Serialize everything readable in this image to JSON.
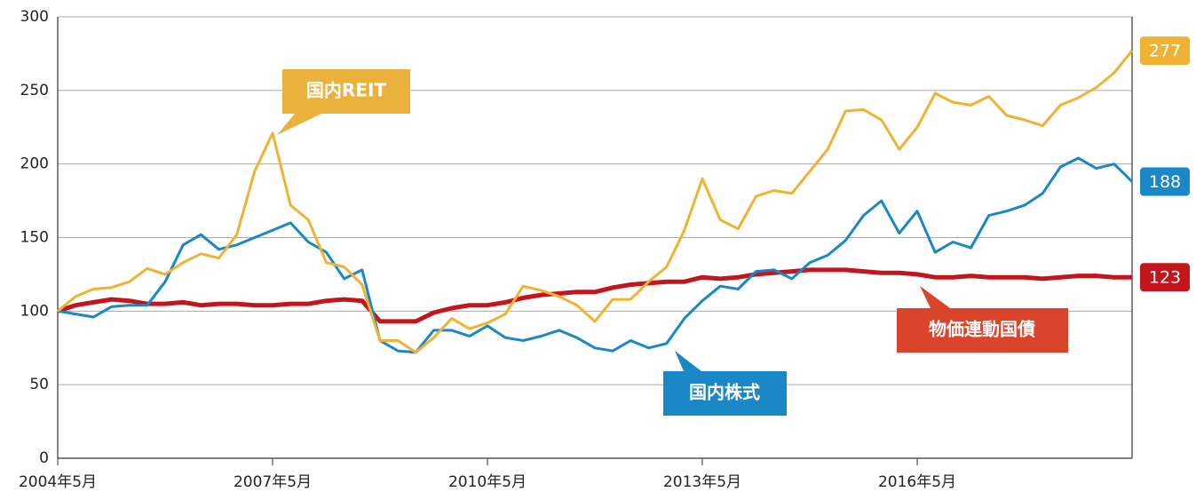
{
  "chart_data": {
    "type": "line",
    "categories": [
      "2004年5月",
      null,
      null,
      null,
      null,
      null,
      null,
      null,
      null,
      null,
      null,
      null,
      "2007年5月",
      null,
      null,
      null,
      null,
      null,
      null,
      null,
      null,
      null,
      null,
      null,
      "2010年5月",
      null,
      null,
      null,
      null,
      null,
      null,
      null,
      null,
      null,
      null,
      null,
      "2013年5月",
      null,
      null,
      null,
      null,
      null,
      null,
      null,
      null,
      null,
      null,
      null,
      "2016年5月",
      null,
      null,
      null,
      null,
      null,
      null,
      null,
      null,
      null,
      null,
      null,
      null
    ],
    "series": [
      {
        "name": "国内REIT",
        "color": "#f0b232",
        "values": [
          100,
          110,
          115,
          116,
          120,
          129,
          125,
          133,
          139,
          136,
          152,
          195,
          221,
          172,
          162,
          133,
          130,
          118,
          80,
          80,
          72,
          82,
          95,
          88,
          92,
          98,
          117,
          114,
          110,
          104,
          93,
          108,
          108,
          120,
          130,
          155,
          190,
          162,
          156,
          178,
          182,
          180,
          195,
          210,
          236,
          237,
          230,
          210,
          225,
          248,
          242,
          240,
          246,
          233,
          230,
          226,
          240,
          245,
          252,
          262,
          277
        ]
      },
      {
        "name": "国内株式",
        "color": "#1a87c6",
        "values": [
          100,
          98,
          96,
          103,
          104,
          104,
          120,
          145,
          152,
          142,
          145,
          150,
          155,
          160,
          147,
          140,
          122,
          128,
          80,
          73,
          72,
          87,
          87,
          83,
          90,
          82,
          80,
          83,
          87,
          82,
          75,
          73,
          80,
          75,
          78,
          95,
          107,
          117,
          115,
          127,
          128,
          122,
          133,
          138,
          148,
          165,
          175,
          153,
          168,
          140,
          147,
          143,
          165,
          168,
          172,
          180,
          198,
          204,
          197,
          200,
          188
        ]
      },
      {
        "name": "物価連動国債",
        "color": "#c3161c",
        "values": [
          100,
          104,
          106,
          108,
          107,
          105,
          105,
          106,
          104,
          105,
          105,
          104,
          104,
          105,
          105,
          107,
          108,
          107,
          93,
          93,
          93,
          99,
          102,
          104,
          104,
          106,
          109,
          111,
          112,
          113,
          113,
          116,
          118,
          119,
          120,
          120,
          123,
          122,
          123,
          125,
          126,
          127,
          128,
          128,
          128,
          127,
          126,
          126,
          125,
          123,
          123,
          124,
          123,
          123,
          123,
          122,
          123,
          124,
          124,
          123,
          123
        ]
      }
    ],
    "ylim": [
      0,
      300
    ],
    "yticks": [
      0,
      50,
      100,
      150,
      200,
      250,
      300
    ],
    "grid": true
  }
}
